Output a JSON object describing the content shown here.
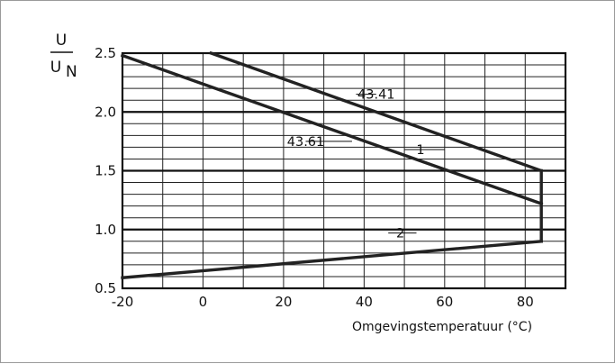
{
  "chart_data": {
    "type": "line",
    "xlabel": "Omgevingstemperatuur (°C)",
    "ylabel_numerator": "U",
    "ylabel_denominator_main": "U",
    "ylabel_denominator_sub": "N",
    "xlim": [
      -20,
      90
    ],
    "ylim": [
      0.5,
      2.5
    ],
    "xticks": [
      -20,
      0,
      20,
      40,
      60,
      80
    ],
    "xtick_labels": [
      "-20",
      "0",
      "20",
      "40",
      "60",
      "80"
    ],
    "yticks": [
      0.5,
      1.0,
      1.5,
      2.0,
      2.5
    ],
    "ytick_labels": [
      "0.5",
      "1.0",
      "1.5",
      "2.0",
      "2.5"
    ],
    "grid_minor_x_step": 10,
    "grid_minor_y_step": 0.1,
    "grid_major_y": [
      1.0,
      1.5,
      2.0
    ],
    "series": [
      {
        "x": [
          2,
          84
        ],
        "y": [
          2.5,
          1.5
        ]
      },
      {
        "x": [
          -20,
          84
        ],
        "y": [
          2.48,
          1.22
        ]
      },
      {
        "x": [
          84,
          84
        ],
        "y": [
          1.5,
          0.9
        ]
      },
      {
        "x": [
          -20,
          84
        ],
        "y": [
          0.59,
          0.9
        ]
      }
    ],
    "annotations": [
      {
        "text": "43.41",
        "x": 43,
        "y": 2.15,
        "leader_to": [
          38,
          2.15
        ]
      },
      {
        "text": "43.61",
        "x": 25.5,
        "y": 1.75,
        "leader_to": [
          37,
          1.75
        ]
      },
      {
        "text": "1",
        "x": 54,
        "y": 1.68,
        "leader_from": [
          50,
          1.68
        ],
        "leader_to": [
          60,
          1.68
        ]
      },
      {
        "text": "2",
        "x": 49,
        "y": 0.97,
        "leader_from": [
          46,
          0.97
        ],
        "leader_to": [
          53,
          0.97
        ]
      }
    ]
  }
}
